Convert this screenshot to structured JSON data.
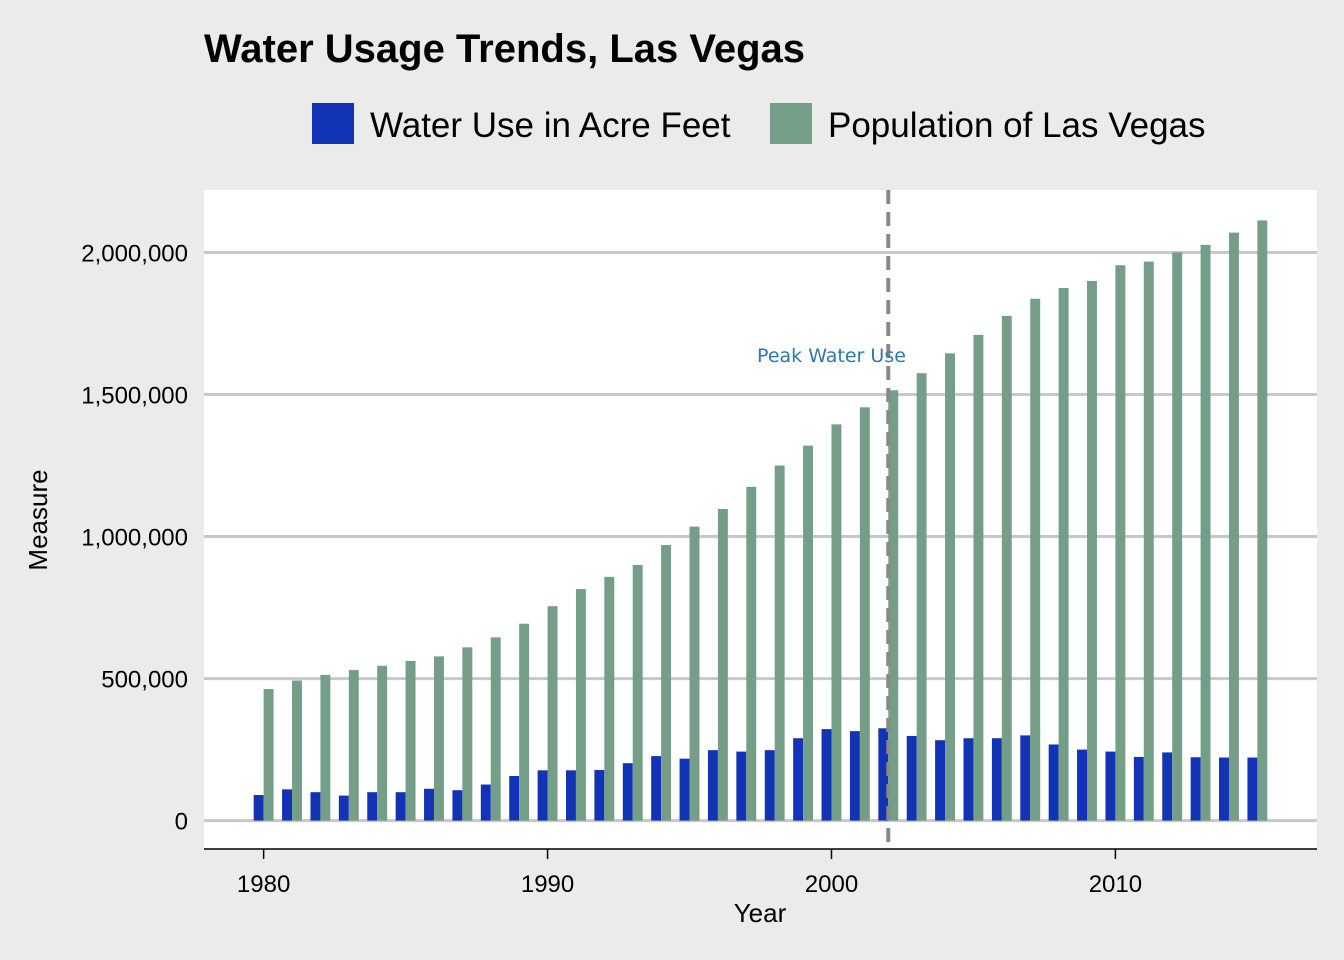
{
  "colors": {
    "water": "#1233b5",
    "population": "#749e88",
    "panel": "#ffffff",
    "background": "#ebebeb",
    "grid": "#c8c8c8",
    "vline": "#888888",
    "annotation": "#2f78a8"
  },
  "chart_data": {
    "type": "bar",
    "title": "Water Usage Trends, Las Vegas",
    "xlabel": "Year",
    "ylabel": "Measure",
    "ylim": [
      -100000,
      2220000
    ],
    "xlim": [
      1977.9,
      2017.1
    ],
    "x_ticks": [
      1980,
      1990,
      2000,
      2010
    ],
    "x_tick_labels": [
      "1980",
      "1990",
      "2000",
      "2010"
    ],
    "y_ticks": [
      0,
      500000,
      1000000,
      1500000,
      2000000
    ],
    "y_tick_labels": [
      "0",
      "500,000",
      "1,000,000",
      "1,500,000",
      "2,000,000"
    ],
    "grid": "horizontal",
    "legend_position": "top",
    "x": [
      1980,
      1981,
      1982,
      1983,
      1984,
      1985,
      1986,
      1987,
      1988,
      1989,
      1990,
      1991,
      1992,
      1993,
      1994,
      1995,
      1996,
      1997,
      1998,
      1999,
      2000,
      2001,
      2002,
      2003,
      2004,
      2005,
      2006,
      2007,
      2008,
      2009,
      2010,
      2011,
      2012,
      2013,
      2014,
      2015
    ],
    "series": [
      {
        "name": "Water Use in Acre Feet",
        "color_key": "water",
        "values": [
          90000,
          110000,
          100000,
          88000,
          100000,
          100000,
          112000,
          107000,
          127000,
          157000,
          177000,
          177000,
          178000,
          202000,
          227000,
          218000,
          248000,
          243000,
          248000,
          290000,
          322000,
          315000,
          325000,
          298000,
          283000,
          290000,
          290000,
          300000,
          268000,
          250000,
          243000,
          224000,
          240000,
          223000,
          222000,
          222000
        ]
      },
      {
        "name": "Population of Las Vegas",
        "color_key": "population",
        "values": [
          463000,
          493000,
          513000,
          530000,
          545000,
          562000,
          578000,
          610000,
          645000,
          693000,
          755000,
          815000,
          858000,
          900000,
          970000,
          1035000,
          1097000,
          1175000,
          1250000,
          1320000,
          1395000,
          1455000,
          1515000,
          1575000,
          1645000,
          1710000,
          1777000,
          1837000,
          1875000,
          1900000,
          1955000,
          1968000,
          2000000,
          2027000,
          2070000,
          2113000
        ]
      }
    ],
    "annotations": [
      {
        "type": "vline",
        "x": 2002,
        "style": "dashed"
      },
      {
        "type": "text",
        "text": "Peak Water Use",
        "x": 2000,
        "y": 1635000
      }
    ]
  }
}
